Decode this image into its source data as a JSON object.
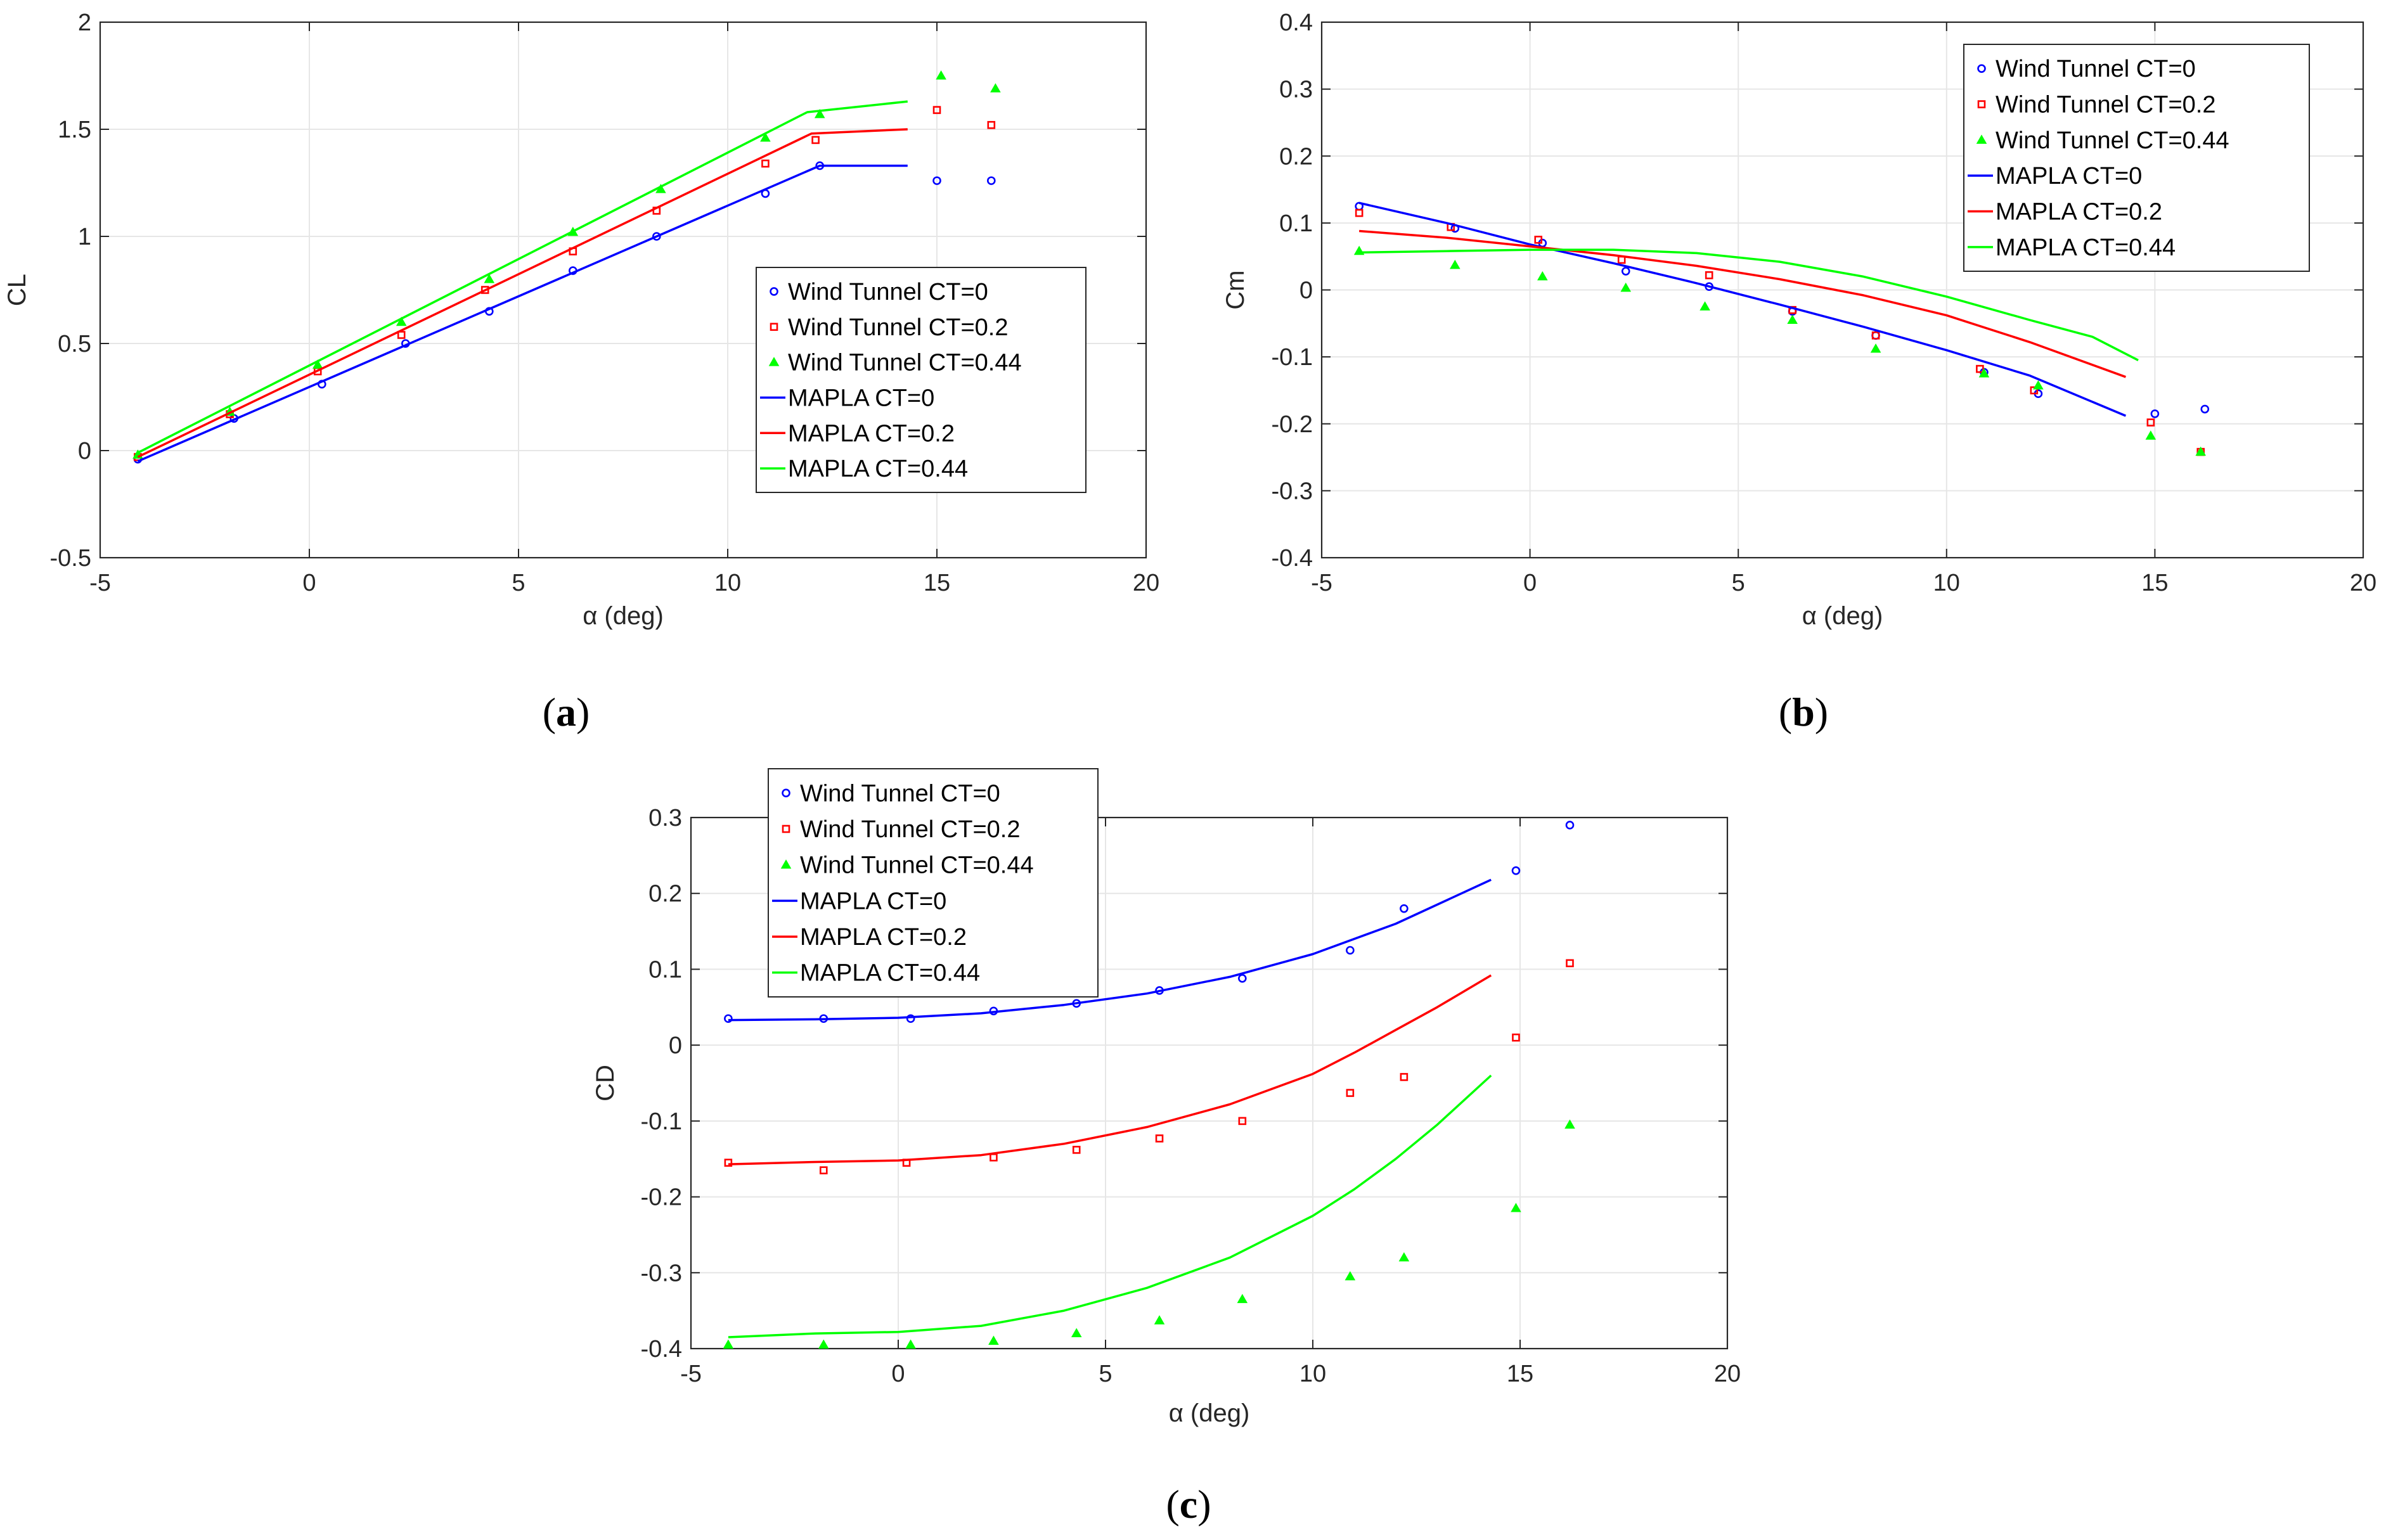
{
  "colors": {
    "ct0": "#0000ff",
    "ct02": "#ff0000",
    "ct044": "#00ff00",
    "axis": "#262626",
    "grid": "#e6e6e6"
  },
  "chart_data": [
    {
      "id": "a",
      "type": "line",
      "caption_open": "(",
      "caption_letter": "a",
      "caption_close": ")",
      "xlabel": "α (deg)",
      "ylabel": "CL",
      "xlim": [
        -5,
        20
      ],
      "ylim": [
        -0.5,
        2
      ],
      "xticks": [
        -5,
        0,
        5,
        10,
        15,
        20
      ],
      "xtick_labels": [
        "-5",
        "0",
        "5",
        "10",
        "15",
        "20"
      ],
      "yticks": [
        -0.5,
        0,
        0.5,
        1,
        1.5,
        2
      ],
      "ytick_labels": [
        "-0.5",
        "0",
        "0.5",
        "1",
        "1.5",
        "2"
      ],
      "grid": true,
      "legend_position": "right",
      "series": [
        {
          "name": "Wind Tunnel CT=0",
          "kind": "marker",
          "marker": "circle",
          "color_key": "ct0",
          "x": [
            -4.1,
            -1.8,
            0.3,
            2.3,
            4.3,
            6.3,
            8.3,
            10.9,
            12.2,
            15.0,
            16.3
          ],
          "y": [
            -0.04,
            0.15,
            0.31,
            0.5,
            0.65,
            0.84,
            1.0,
            1.2,
            1.33,
            1.26,
            1.26
          ]
        },
        {
          "name": "Wind Tunnel CT=0.2",
          "kind": "marker",
          "marker": "square",
          "color_key": "ct02",
          "x": [
            -4.1,
            -1.9,
            0.2,
            2.2,
            4.2,
            6.3,
            8.3,
            10.9,
            12.1,
            15.0,
            16.3
          ],
          "y": [
            -0.03,
            0.17,
            0.37,
            0.54,
            0.75,
            0.93,
            1.12,
            1.34,
            1.45,
            1.59,
            1.52
          ]
        },
        {
          "name": "Wind Tunnel CT=0.44",
          "kind": "marker",
          "marker": "triangle",
          "color_key": "ct044",
          "x": [
            -4.1,
            -1.9,
            0.2,
            2.2,
            4.3,
            6.3,
            8.4,
            10.9,
            12.2,
            15.1,
            16.4
          ],
          "y": [
            -0.02,
            0.18,
            0.4,
            0.6,
            0.8,
            1.02,
            1.22,
            1.46,
            1.57,
            1.75,
            1.69
          ]
        },
        {
          "name": "MAPLA CT=0",
          "kind": "line",
          "color_key": "ct0",
          "x": [
            -4.1,
            12.2,
            14.3
          ],
          "y": [
            -0.05,
            1.33,
            1.33
          ]
        },
        {
          "name": "MAPLA CT=0.2",
          "kind": "line",
          "color_key": "ct02",
          "x": [
            -4.1,
            12.0,
            14.3
          ],
          "y": [
            -0.03,
            1.48,
            1.5
          ]
        },
        {
          "name": "MAPLA CT=0.44",
          "kind": "line",
          "color_key": "ct044",
          "x": [
            -4.1,
            11.9,
            14.3
          ],
          "y": [
            -0.01,
            1.58,
            1.63
          ]
        }
      ]
    },
    {
      "id": "b",
      "type": "line",
      "caption_open": "(",
      "caption_letter": "b",
      "caption_close": ")",
      "xlabel": "α (deg)",
      "ylabel": "Cm",
      "xlim": [
        -5,
        20
      ],
      "ylim": [
        -0.4,
        0.4
      ],
      "xticks": [
        -5,
        0,
        5,
        10,
        15,
        20
      ],
      "xtick_labels": [
        "-5",
        "0",
        "5",
        "10",
        "15",
        "20"
      ],
      "yticks": [
        -0.4,
        -0.3,
        -0.2,
        -0.1,
        0,
        0.1,
        0.2,
        0.3,
        0.4
      ],
      "ytick_labels": [
        "-0.4",
        "-0.3",
        "-0.2",
        "-0.1",
        "0",
        "0.1",
        "0.2",
        "0.3",
        "0.4"
      ],
      "grid": true,
      "legend_position": "top-right",
      "series": [
        {
          "name": "Wind Tunnel CT=0",
          "kind": "marker",
          "marker": "circle",
          "color_key": "ct0",
          "x": [
            -4.1,
            -1.8,
            0.3,
            2.3,
            4.3,
            6.3,
            8.3,
            10.9,
            12.2,
            15.0,
            16.2
          ],
          "y": [
            0.125,
            0.092,
            0.07,
            0.028,
            0.005,
            -0.032,
            -0.068,
            -0.123,
            -0.155,
            -0.185,
            -0.178
          ]
        },
        {
          "name": "Wind Tunnel CT=0.2",
          "kind": "marker",
          "marker": "square",
          "color_key": "ct02",
          "x": [
            -4.1,
            -1.9,
            0.2,
            2.2,
            4.3,
            6.3,
            8.3,
            10.8,
            12.1,
            14.9,
            16.1
          ],
          "y": [
            0.115,
            0.094,
            0.075,
            0.045,
            0.022,
            -0.03,
            -0.068,
            -0.118,
            -0.15,
            -0.198,
            -0.242
          ]
        },
        {
          "name": "Wind Tunnel CT=0.44",
          "kind": "marker",
          "marker": "triangle",
          "color_key": "ct044",
          "x": [
            -4.1,
            -1.8,
            0.3,
            2.3,
            4.2,
            6.3,
            8.3,
            10.9,
            12.2,
            14.9,
            16.1
          ],
          "y": [
            0.058,
            0.037,
            0.02,
            0.003,
            -0.025,
            -0.045,
            -0.088,
            -0.125,
            -0.143,
            -0.218,
            -0.242
          ]
        },
        {
          "name": "MAPLA CT=0",
          "kind": "line",
          "color_key": "ct0",
          "x": [
            -4.1,
            -2,
            0,
            2,
            4,
            6,
            8,
            10,
            12,
            14.3
          ],
          "y": [
            0.13,
            0.1,
            0.068,
            0.04,
            0.01,
            -0.022,
            -0.055,
            -0.09,
            -0.128,
            -0.188
          ]
        },
        {
          "name": "MAPLA CT=0.2",
          "kind": "line",
          "color_key": "ct02",
          "x": [
            -4.1,
            -2,
            0,
            2,
            4,
            6,
            8,
            10,
            12,
            14.3
          ],
          "y": [
            0.088,
            0.078,
            0.065,
            0.052,
            0.036,
            0.016,
            -0.008,
            -0.038,
            -0.078,
            -0.13
          ]
        },
        {
          "name": "MAPLA CT=0.44",
          "kind": "line",
          "color_key": "ct044",
          "x": [
            -4.1,
            -2,
            0,
            2,
            4,
            6,
            8,
            10,
            12,
            13.5,
            14.6
          ],
          "y": [
            0.056,
            0.058,
            0.06,
            0.06,
            0.055,
            0.042,
            0.02,
            -0.01,
            -0.045,
            -0.07,
            -0.105
          ]
        }
      ]
    },
    {
      "id": "c",
      "type": "line",
      "caption_open": "(",
      "caption_letter": "c",
      "caption_close": ")",
      "xlabel": "α (deg)",
      "ylabel": "CD",
      "xlim": [
        -5,
        20
      ],
      "ylim": [
        -0.4,
        0.3
      ],
      "xticks": [
        -5,
        0,
        5,
        10,
        15,
        20
      ],
      "xtick_labels": [
        "-5",
        "0",
        "5",
        "10",
        "15",
        "20"
      ],
      "yticks": [
        -0.4,
        -0.3,
        -0.2,
        -0.1,
        0,
        0.1,
        0.2,
        0.3
      ],
      "ytick_labels": [
        "-0.4",
        "-0.3",
        "-0.2",
        "-0.1",
        "0",
        "0.1",
        "0.2",
        "0.3"
      ],
      "grid": true,
      "legend_position": "outside-top-left",
      "series": [
        {
          "name": "Wind Tunnel CT=0",
          "kind": "marker",
          "marker": "circle",
          "color_key": "ct0",
          "x": [
            -4.1,
            -1.8,
            0.3,
            2.3,
            4.3,
            6.3,
            8.3,
            10.9,
            12.2,
            14.9,
            16.2
          ],
          "y": [
            0.035,
            0.035,
            0.035,
            0.045,
            0.055,
            0.072,
            0.088,
            0.125,
            0.18,
            0.23,
            0.29
          ]
        },
        {
          "name": "Wind Tunnel CT=0.2",
          "kind": "marker",
          "marker": "square",
          "color_key": "ct02",
          "x": [
            -4.1,
            -1.8,
            0.2,
            2.3,
            4.3,
            6.3,
            8.3,
            10.9,
            12.2,
            14.9,
            16.2
          ],
          "y": [
            -0.155,
            -0.165,
            -0.155,
            -0.148,
            -0.138,
            -0.123,
            -0.1,
            -0.063,
            -0.042,
            0.01,
            0.108
          ]
        },
        {
          "name": "Wind Tunnel CT=0.44",
          "kind": "marker",
          "marker": "triangle",
          "color_key": "ct044",
          "x": [
            -4.1,
            -1.8,
            0.3,
            2.3,
            4.3,
            6.3,
            8.3,
            10.9,
            12.2,
            14.9,
            16.2
          ],
          "y": [
            -0.395,
            -0.395,
            -0.395,
            -0.39,
            -0.38,
            -0.363,
            -0.335,
            -0.305,
            -0.28,
            -0.215,
            -0.105
          ]
        },
        {
          "name": "MAPLA CT=0",
          "kind": "line",
          "color_key": "ct0",
          "x": [
            -4.1,
            -2,
            0,
            2,
            4,
            6,
            8,
            10,
            12,
            14.3
          ],
          "y": [
            0.033,
            0.034,
            0.036,
            0.042,
            0.053,
            0.068,
            0.09,
            0.12,
            0.16,
            0.218
          ]
        },
        {
          "name": "MAPLA CT=0.2",
          "kind": "line",
          "color_key": "ct02",
          "x": [
            -4.1,
            -2,
            0,
            2,
            4,
            6,
            8,
            10,
            11,
            12,
            13,
            14.3
          ],
          "y": [
            -0.157,
            -0.154,
            -0.152,
            -0.145,
            -0.13,
            -0.108,
            -0.078,
            -0.038,
            -0.01,
            0.02,
            0.05,
            0.092
          ]
        },
        {
          "name": "MAPLA CT=0.44",
          "kind": "line",
          "color_key": "ct044",
          "x": [
            -4.1,
            -2,
            0,
            2,
            4,
            6,
            8,
            10,
            11,
            12,
            13,
            14.3
          ],
          "y": [
            -0.385,
            -0.38,
            -0.378,
            -0.37,
            -0.35,
            -0.32,
            -0.28,
            -0.225,
            -0.19,
            -0.15,
            -0.105,
            -0.04
          ]
        }
      ]
    }
  ]
}
